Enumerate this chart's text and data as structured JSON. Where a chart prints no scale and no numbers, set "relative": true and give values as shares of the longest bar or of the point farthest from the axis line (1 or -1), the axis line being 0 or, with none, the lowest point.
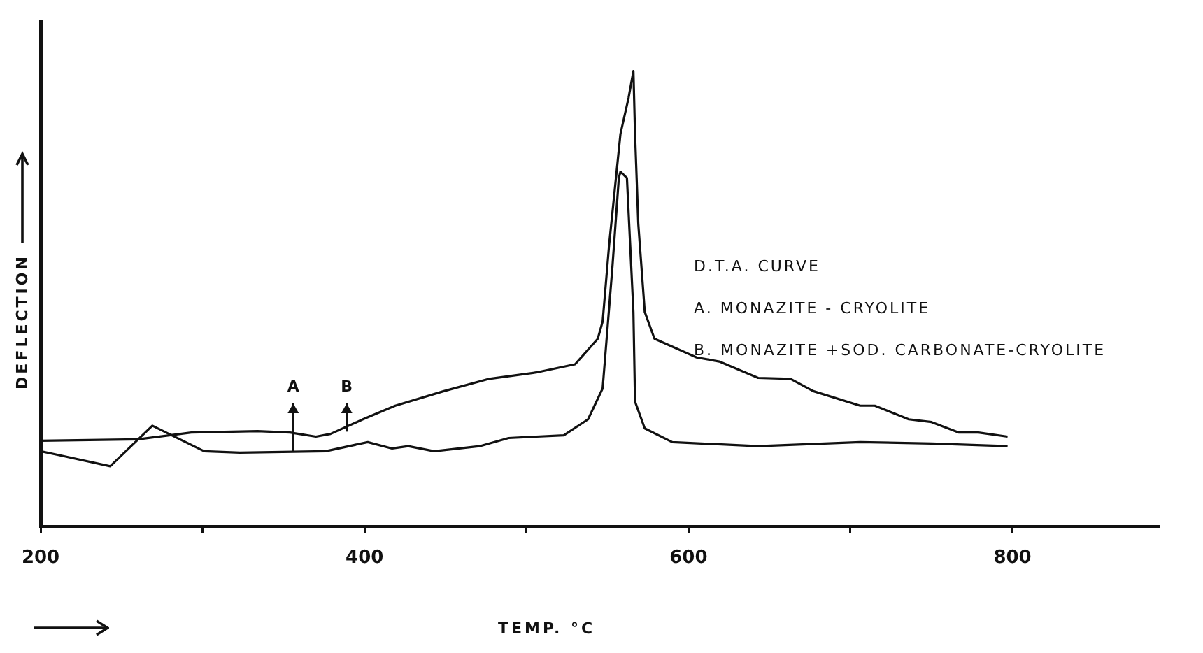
{
  "chart_data": {
    "type": "line",
    "relative": true,
    "xlabel": "TEMP. °C",
    "ylabel": "DEFLECTION",
    "xlim": [
      200,
      890
    ],
    "xticks": [
      200,
      {
        "value": 300,
        "label": null
      },
      400,
      {
        "value": 500,
        "label": null
      },
      600,
      {
        "value": 700,
        "label": null
      },
      800
    ],
    "marker": "none",
    "line_style": "solid",
    "grid": false,
    "legend": false,
    "series": [
      {
        "color": "#111111",
        "x": [
          200,
          260,
          293,
          334,
          354,
          370,
          379,
          399,
          419,
          449,
          477,
          506,
          530,
          544,
          547,
          551,
          558,
          563,
          566,
          567,
          569,
          573,
          579,
          605,
          619,
          643,
          663,
          677,
          706,
          715,
          736,
          750,
          767,
          779,
          797
        ],
        "values": [
          0.188,
          0.191,
          0.206,
          0.209,
          0.206,
          0.197,
          0.203,
          0.235,
          0.265,
          0.297,
          0.324,
          0.338,
          0.356,
          0.412,
          0.45,
          0.618,
          0.862,
          0.941,
          1,
          0.862,
          0.665,
          0.471,
          0.412,
          0.371,
          0.362,
          0.326,
          0.324,
          0.297,
          0.265,
          0.265,
          0.235,
          0.229,
          0.206,
          0.206,
          0.197
        ]
      },
      {
        "color": "#111111",
        "x": [
          200,
          212,
          243,
          269,
          301,
          323,
          376,
          402,
          417,
          427,
          443,
          471,
          489,
          523,
          538,
          547,
          553,
          557,
          558,
          562,
          566,
          567,
          573,
          590,
          643,
          706,
          750,
          797
        ],
        "values": [
          0.165,
          0.156,
          0.132,
          0.221,
          0.165,
          0.162,
          0.165,
          0.185,
          0.171,
          0.176,
          0.165,
          0.176,
          0.194,
          0.2,
          0.235,
          0.303,
          0.568,
          0.765,
          0.779,
          0.765,
          0.471,
          0.274,
          0.215,
          0.185,
          0.176,
          0.185,
          0.182,
          0.176
        ]
      }
    ],
    "annotations": [
      {
        "text": "A",
        "x": 356,
        "y": 0.165
      },
      {
        "text": "B",
        "x": 389,
        "y": 0.208
      },
      "D.T.A. CURVE",
      "A. MONAZITE - CRYOLITE",
      "B. MONAZITE +SOD. CARBONATE-CRYOLITE"
    ]
  }
}
